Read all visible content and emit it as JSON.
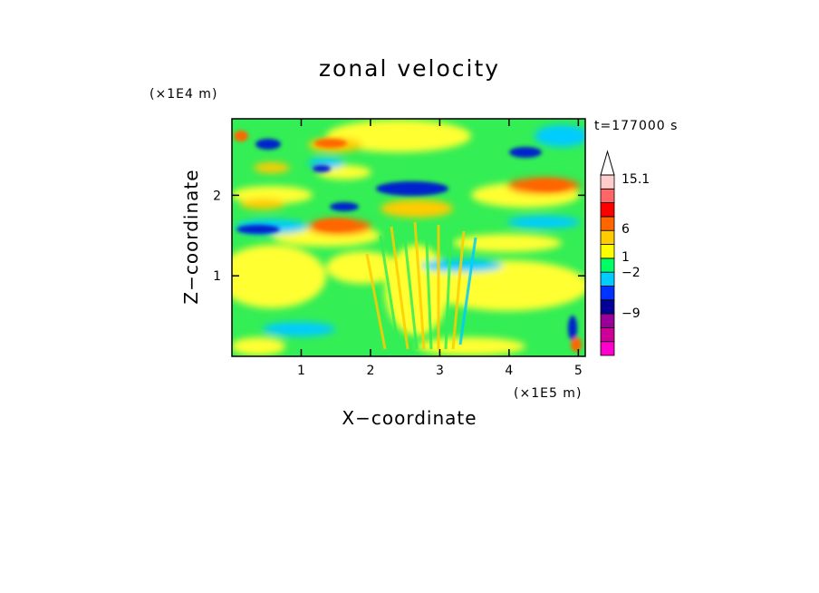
{
  "chart_data": {
    "type": "heatmap",
    "title": "zonal velocity",
    "xlabel": "X−coordinate",
    "ylabel": "Z−coordinate",
    "x_scale_label": "(×1E5 m)",
    "y_scale_label": "(×1E4 m)",
    "time_label": "t=177000 s",
    "xlim": [
      0,
      5.1
    ],
    "ylim": [
      0,
      2.95
    ],
    "x_ticks": [
      "1",
      "2",
      "3",
      "4",
      "5"
    ],
    "x_tick_values": [
      1,
      2,
      3,
      4,
      5
    ],
    "y_ticks": [
      "1",
      "2"
    ],
    "y_tick_values": [
      1,
      2
    ],
    "colorbar": {
      "labels": [
        "15.1",
        "6",
        "1",
        "−2",
        "−9"
      ],
      "label_values": [
        15.1,
        6,
        1,
        -2,
        -9
      ],
      "color_levels": [
        "#ff00cc",
        "#cc0099",
        "#990099",
        "#000099",
        "#0033ff",
        "#00ccff",
        "#00ff66",
        "#ffff00",
        "#ffcc00",
        "#ff6600",
        "#ff0000",
        "#ff6666",
        "#ffcccc"
      ],
      "extend_max": true
    },
    "field_colors": {
      "strong_negative": "#0022cc",
      "negative": "#00ccff",
      "weak": "#33ee55",
      "weak_positive": "#ffff33",
      "positive": "#ffcc00",
      "strong_positive": "#ff6600"
    }
  }
}
